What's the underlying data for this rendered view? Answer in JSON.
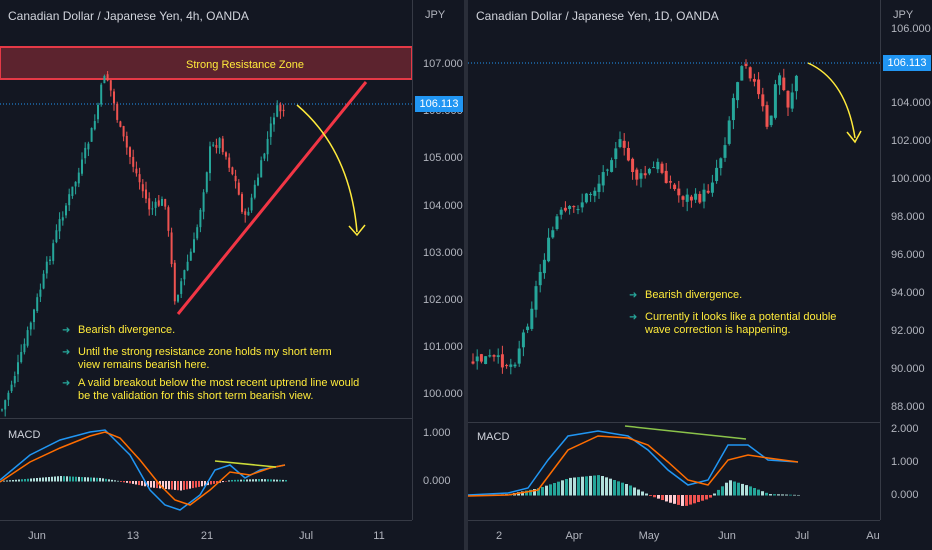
{
  "left_chart": {
    "title": "Canadian Dollar / Japanese Yen, 4h, OANDA",
    "currency": "JPY",
    "price_ticks": [
      "107.000",
      "106.000",
      "105.000",
      "104.000",
      "103.000",
      "102.000",
      "101.000",
      "100.000"
    ],
    "last_price": "106.113",
    "resistance_label": "Strong Resistance Zone",
    "notes": [
      "Bearish divergence.",
      "Until the strong resistance zone holds my short term view remains bearish here.",
      "A valid breakout below the most recent uptrend line would be the validation for this short term bearish view."
    ],
    "macd_label": "MACD",
    "macd_ticks": [
      "1.000",
      "0.000"
    ],
    "time_ticks": [
      "Jun",
      "13",
      "21",
      "Jul",
      "11"
    ]
  },
  "right_chart": {
    "title": "Canadian Dollar / Japanese Yen, 1D, OANDA",
    "currency": "JPY",
    "price_ticks": [
      "106.000",
      "104.000",
      "102.000",
      "100.000",
      "98.000",
      "96.000",
      "94.000",
      "92.000",
      "90.000",
      "88.000"
    ],
    "last_price": "106.113",
    "notes": [
      "Bearish divergence.",
      "Currently it looks like a potential double wave correction is happening."
    ],
    "macd_label": "MACD",
    "macd_ticks": [
      "2.000",
      "1.000",
      "0.000"
    ],
    "time_ticks": [
      "2",
      "Apr",
      "May",
      "Jun",
      "Jul",
      "Au"
    ]
  },
  "colors": {
    "background": "#131722",
    "up": "#26a69a",
    "down": "#ef5350",
    "resistance": "#e53946",
    "trendline": "#f23645",
    "arrow": "#ffeb3b",
    "price_tag": "#2196f3",
    "macd_line": "#2196f3",
    "signal_line": "#ff6d00"
  }
}
